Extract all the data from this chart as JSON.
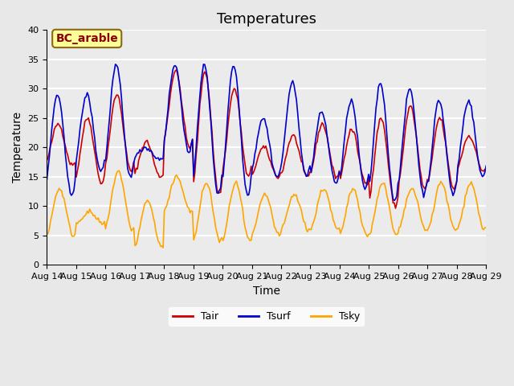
{
  "title": "Temperatures",
  "xlabel": "Time",
  "ylabel": "Temperature",
  "ylim": [
    0,
    40
  ],
  "yticks": [
    0,
    5,
    10,
    15,
    20,
    25,
    30,
    35,
    40
  ],
  "x_labels": [
    "Aug 14",
    "Aug 15",
    "Aug 16",
    "Aug 17",
    "Aug 18",
    "Aug 19",
    "Aug 20",
    "Aug 21",
    "Aug 22",
    "Aug 23",
    "Aug 24",
    "Aug 25",
    "Aug 26",
    "Aug 27",
    "Aug 28",
    "Aug 29"
  ],
  "color_tair": "#cc0000",
  "color_tsurf": "#0000cc",
  "color_tsky": "#ffa500",
  "legend_label_tair": "Tair",
  "legend_label_tsurf": "Tsurf",
  "legend_label_tsky": "Tsky",
  "annotation_text": "BC_arable",
  "annotation_color": "#8b0000",
  "annotation_bg": "#ffff99",
  "background_color": "#e8e8e8",
  "plot_bg_color": "#ebebeb",
  "grid_color": "white",
  "title_fontsize": 13,
  "axis_label_fontsize": 10,
  "tick_fontsize": 8,
  "n_days": 15,
  "n_points_per_day": 24
}
